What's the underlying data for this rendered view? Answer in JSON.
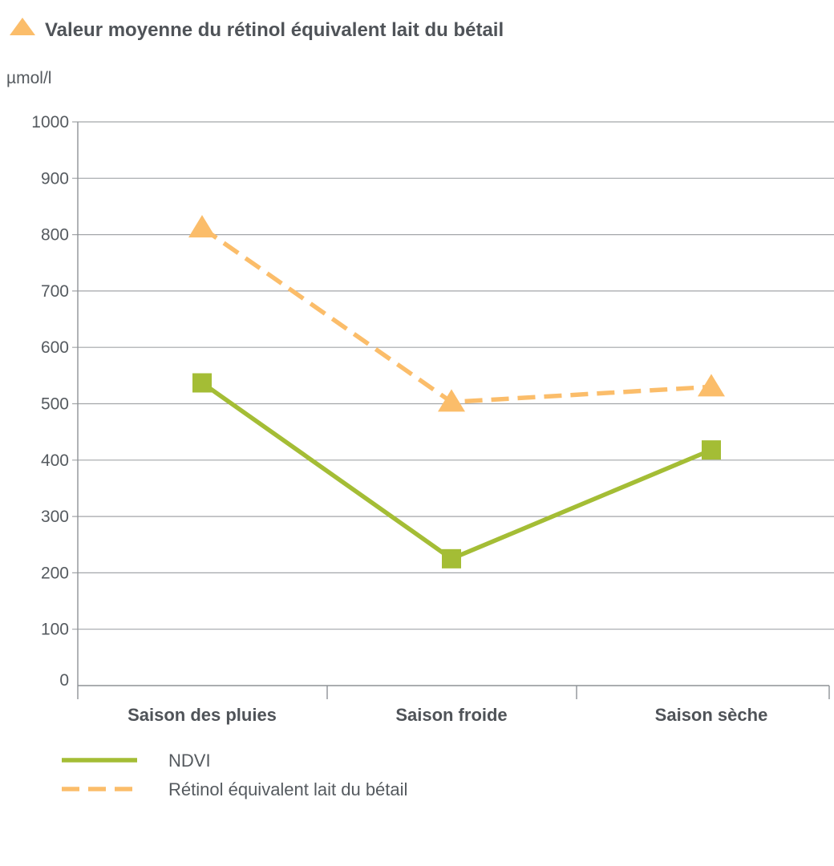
{
  "chart_data": {
    "type": "line",
    "title": "Valeur moyenne du rétinol équivalent lait du bétail",
    "title_marker_icon": "triangle-marker-icon",
    "ylabel": "µmol/l",
    "xlabel": "",
    "ylim": [
      0,
      1000
    ],
    "yticks": [
      0,
      100,
      200,
      300,
      400,
      500,
      600,
      700,
      800,
      900,
      1000
    ],
    "grid": true,
    "categories": [
      "Saison des pluies",
      "Saison froide",
      "Saison sèche"
    ],
    "series": [
      {
        "name": "NDVI",
        "values": [
          537,
          225,
          418
        ],
        "color": "#a4bd35",
        "line_style": "solid",
        "marker": "square"
      },
      {
        "name": "Rétinol équivalent lait du bétail",
        "values": [
          812,
          503,
          530
        ],
        "color": "#fbbd6a",
        "line_style": "dashed",
        "marker": "triangle"
      }
    ],
    "legend_position": "bottom-left"
  },
  "colors": {
    "grid": "#a3a6a9",
    "axis": "#8e9296",
    "text": "#555a5f",
    "title": "#4f5358"
  }
}
